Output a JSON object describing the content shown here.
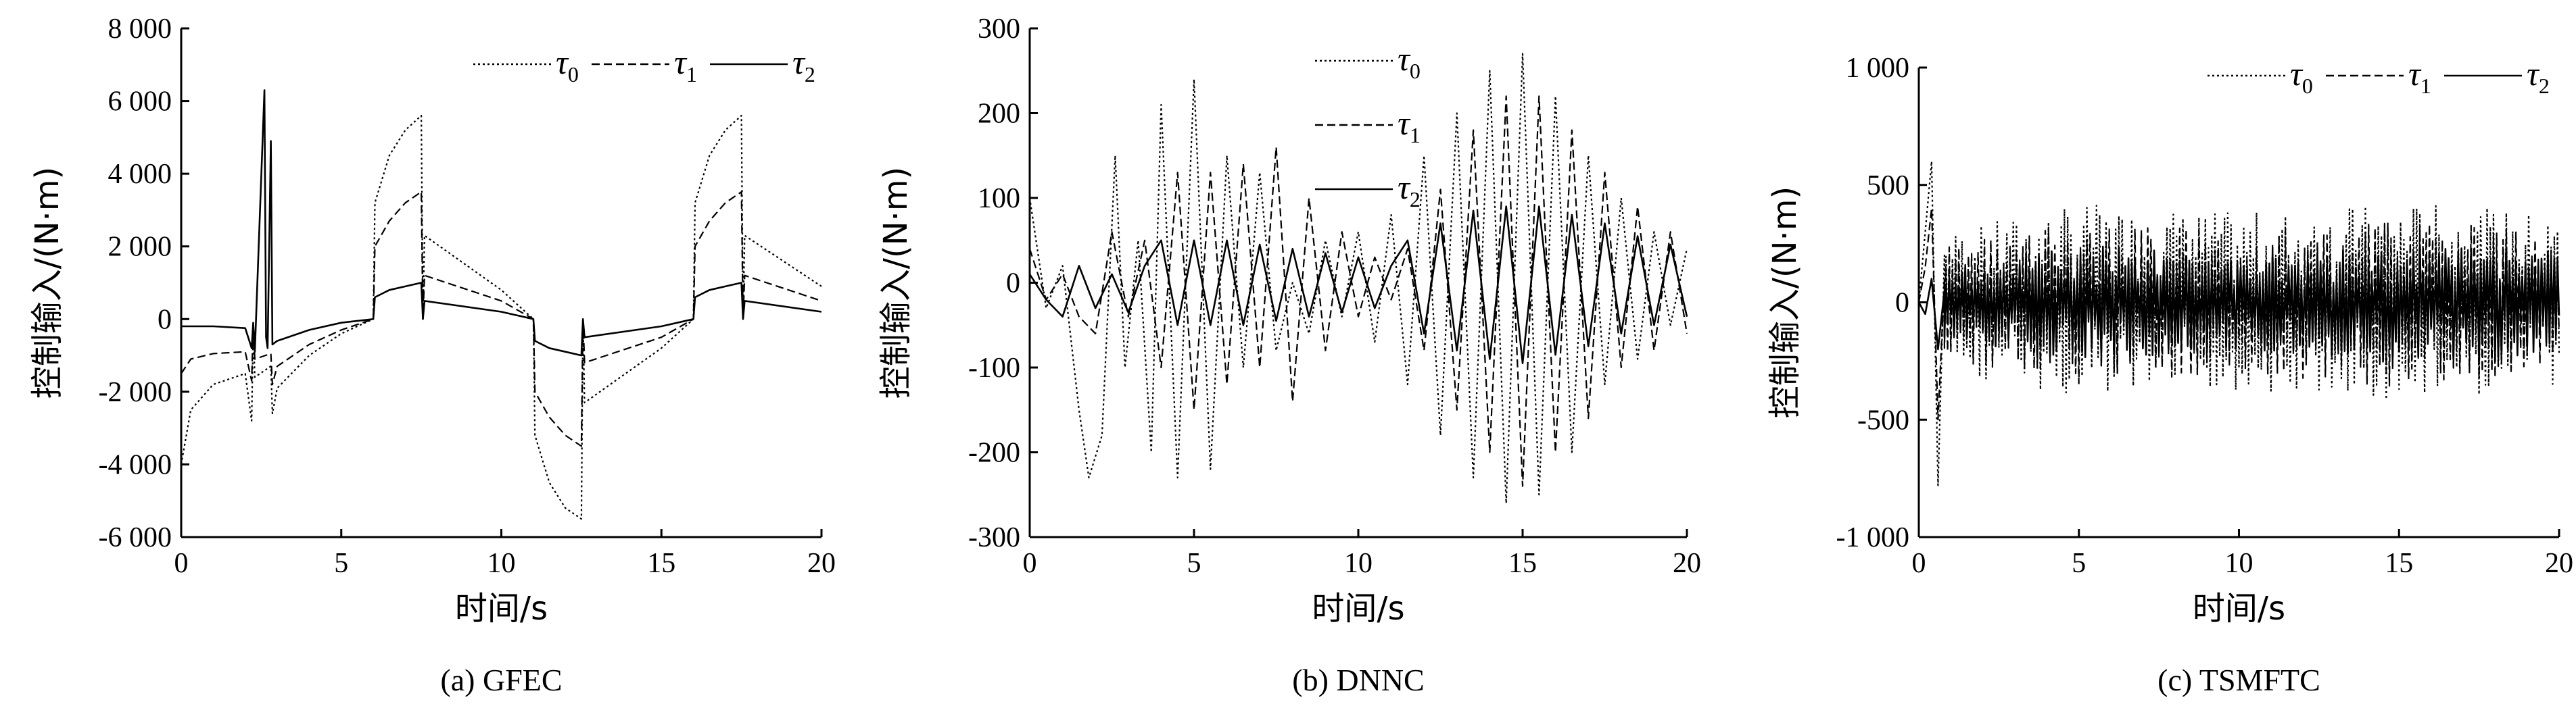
{
  "chart_data": [
    {
      "type": "line",
      "caption": "(a) GFEC",
      "xlabel": "时间/s",
      "ylabel": "控制输入/(N·m)",
      "xlim": [
        0,
        20
      ],
      "ylim": [
        -6000,
        8000
      ],
      "xticks": [
        0,
        5,
        10,
        15,
        20
      ],
      "xtick_labels": [
        "0",
        "5",
        "10",
        "15",
        "20"
      ],
      "yticks": [
        -6000,
        -4000,
        -2000,
        0,
        2000,
        4000,
        6000,
        8000
      ],
      "ytick_labels": [
        "-6 000",
        "-4 000",
        "-2 000",
        "0",
        "2 000",
        "4 000",
        "6 000",
        "8 000"
      ],
      "legend_layout": "row",
      "legend_position": "top-right",
      "series": [
        {
          "name": "τ",
          "sub": "0",
          "style": "dotted",
          "x": [
            0,
            0.3,
            1,
            2,
            2.2,
            2.25,
            2.3,
            2.8,
            2.85,
            3,
            4,
            5,
            6,
            6.05,
            6.5,
            7,
            7.5,
            7.55,
            7.6,
            10,
            11,
            11.05,
            11.5,
            12,
            12.5,
            12.55,
            12.6,
            15,
            16,
            16.05,
            16.5,
            17,
            17.5,
            17.55,
            17.6,
            20
          ],
          "y": [
            -4000,
            -2500,
            -1800,
            -1500,
            -2800,
            -300,
            -1600,
            -1300,
            -2600,
            -1900,
            -1000,
            -400,
            0,
            3200,
            4500,
            5200,
            5600,
            0,
            2300,
            800,
            0,
            -3200,
            -4500,
            -5200,
            -5500,
            0,
            -2300,
            -800,
            0,
            3200,
            4500,
            5200,
            5600,
            0,
            2300,
            900
          ]
        },
        {
          "name": "τ",
          "sub": "1",
          "style": "dashed",
          "x": [
            0,
            0.3,
            1,
            2,
            2.2,
            2.25,
            2.3,
            2.8,
            2.85,
            3,
            4,
            5,
            6,
            6.05,
            6.5,
            7,
            7.5,
            7.55,
            7.6,
            10,
            11,
            11.05,
            11.5,
            12,
            12.5,
            12.55,
            12.6,
            15,
            16,
            16.05,
            16.5,
            17,
            17.5,
            17.55,
            17.6,
            20
          ],
          "y": [
            -1500,
            -1100,
            -950,
            -900,
            -1700,
            -200,
            -1100,
            -950,
            -1800,
            -1300,
            -700,
            -300,
            0,
            2000,
            2700,
            3200,
            3500,
            0,
            1200,
            500,
            0,
            -2000,
            -2700,
            -3200,
            -3500,
            0,
            -1200,
            -500,
            0,
            2000,
            2700,
            3200,
            3500,
            0,
            1200,
            500
          ]
        },
        {
          "name": "τ",
          "sub": "2",
          "style": "solid",
          "x": [
            0,
            1,
            2,
            2.2,
            2.25,
            2.3,
            2.6,
            2.65,
            2.7,
            2.8,
            2.85,
            3,
            4,
            5,
            6,
            6.05,
            6.5,
            7,
            7.5,
            7.55,
            7.6,
            10,
            11,
            11.05,
            11.5,
            12,
            12.5,
            12.55,
            12.6,
            15,
            16,
            16.05,
            16.5,
            17,
            17.5,
            17.55,
            17.6,
            20
          ],
          "y": [
            -200,
            -200,
            -250,
            -800,
            -100,
            -900,
            6300,
            -500,
            -800,
            4900,
            -700,
            -600,
            -300,
            -100,
            0,
            600,
            800,
            900,
            1000,
            0,
            500,
            200,
            0,
            -600,
            -800,
            -900,
            -1000,
            0,
            -500,
            -200,
            0,
            600,
            800,
            900,
            1000,
            0,
            500,
            200
          ]
        }
      ]
    },
    {
      "type": "line",
      "caption": "(b) DNNC",
      "xlabel": "时间/s",
      "ylabel": "控制输入/(N·m)",
      "xlim": [
        0,
        20
      ],
      "ylim": [
        -300,
        300
      ],
      "xticks": [
        0,
        5,
        10,
        15,
        20
      ],
      "xtick_labels": [
        "0",
        "5",
        "10",
        "15",
        "20"
      ],
      "yticks": [
        -300,
        -200,
        -100,
        0,
        100,
        200,
        300
      ],
      "ytick_labels": [
        "-300",
        "-200",
        "-100",
        "0",
        "100",
        "200",
        "300"
      ],
      "legend_layout": "column",
      "legend_position": "top-center",
      "series": [
        {
          "name": "τ",
          "sub": "0",
          "style": "dotted",
          "x": [
            0,
            0.5,
            1,
            1.5,
            1.8,
            2.2,
            2.6,
            2.9,
            3.3,
            3.7,
            4,
            4.5,
            5,
            5.5,
            6,
            6.5,
            7,
            7.5,
            8,
            8.5,
            9,
            9.5,
            10,
            10.5,
            11,
            11.5,
            12,
            12.5,
            13,
            13.5,
            14,
            14.5,
            15,
            15.5,
            16,
            16.5,
            17,
            17.5,
            18,
            18.5,
            19,
            19.5,
            20
          ],
          "y": [
            100,
            -30,
            20,
            -150,
            -230,
            -180,
            150,
            -100,
            50,
            -200,
            210,
            -230,
            240,
            -220,
            150,
            -100,
            130,
            -80,
            0,
            -60,
            50,
            -40,
            60,
            -70,
            80,
            -120,
            150,
            -180,
            200,
            -230,
            250,
            -260,
            270,
            -250,
            220,
            -200,
            150,
            -120,
            100,
            -90,
            60,
            -50,
            40
          ]
        },
        {
          "name": "τ",
          "sub": "1",
          "style": "dashed",
          "x": [
            0,
            0.5,
            1,
            1.5,
            2,
            2.5,
            3,
            3.5,
            4,
            4.5,
            5,
            5.5,
            6,
            6.5,
            7,
            7.5,
            8,
            8.5,
            9,
            9.5,
            10,
            10.5,
            11,
            11.5,
            12,
            12.5,
            13,
            13.5,
            14,
            14.5,
            15,
            15.5,
            16,
            16.5,
            17,
            17.5,
            18,
            18.5,
            19,
            19.5,
            20
          ],
          "y": [
            40,
            -20,
            10,
            -40,
            -60,
            60,
            -40,
            50,
            -100,
            130,
            -150,
            130,
            -120,
            140,
            -100,
            160,
            -140,
            100,
            -80,
            60,
            -40,
            30,
            -20,
            40,
            -80,
            110,
            -150,
            180,
            -200,
            220,
            -240,
            220,
            -200,
            180,
            -160,
            130,
            -100,
            90,
            -80,
            60,
            -60
          ]
        },
        {
          "name": "τ",
          "sub": "2",
          "style": "solid",
          "x": [
            0,
            0.5,
            1,
            1.5,
            2,
            2.5,
            3,
            3.5,
            4,
            4.5,
            5,
            5.5,
            6,
            6.5,
            7,
            7.5,
            8,
            8.5,
            9,
            9.5,
            10,
            10.5,
            11,
            11.5,
            12,
            12.5,
            13,
            13.5,
            14,
            14.5,
            15,
            15.5,
            16,
            16.5,
            17,
            17.5,
            18,
            18.5,
            19,
            19.5,
            20
          ],
          "y": [
            10,
            -20,
            -40,
            20,
            -30,
            10,
            -35,
            20,
            50,
            -50,
            50,
            -50,
            50,
            -50,
            45,
            -45,
            40,
            -40,
            35,
            -35,
            30,
            -30,
            20,
            50,
            -60,
            70,
            -80,
            85,
            -90,
            90,
            -95,
            90,
            -85,
            80,
            -75,
            70,
            -60,
            55,
            -50,
            45,
            -40
          ]
        }
      ]
    },
    {
      "type": "line",
      "caption": "(c) TSMFTC",
      "xlabel": "时间/s",
      "ylabel": "控制输入/(N·m)",
      "xlim": [
        0,
        20
      ],
      "ylim": [
        -1000,
        1000
      ],
      "xticks": [
        0,
        5,
        10,
        15,
        20
      ],
      "xtick_labels": [
        "0",
        "5",
        "10",
        "15",
        "20"
      ],
      "yticks": [
        -1000,
        -500,
        0,
        500,
        1000
      ],
      "ytick_labels": [
        "-1 000",
        "-500",
        "0",
        "500",
        "1 000"
      ],
      "legend_layout": "row",
      "legend_position": "top-right",
      "noise": {
        "start": 0.8,
        "end": 20,
        "step": 0.05,
        "seed": 7
      },
      "series": [
        {
          "name": "τ",
          "sub": "0",
          "style": "dotted",
          "x": [
            0,
            0.2,
            0.4,
            0.6,
            0.8
          ],
          "y": [
            0,
            300,
            600,
            -780,
            200
          ],
          "noise_amp": [
            [
              0.8,
              300
            ],
            [
              5,
              420
            ],
            [
              10,
              380
            ],
            [
              15,
              430
            ],
            [
              20,
              380
            ]
          ]
        },
        {
          "name": "τ",
          "sub": "1",
          "style": "dashed",
          "x": [
            0,
            0.2,
            0.4,
            0.6,
            0.8
          ],
          "y": [
            0,
            150,
            400,
            -500,
            100
          ],
          "noise_amp": [
            [
              0.8,
              250
            ],
            [
              5,
              350
            ],
            [
              10,
              300
            ],
            [
              15,
              360
            ],
            [
              20,
              300
            ]
          ]
        },
        {
          "name": "τ",
          "sub": "2",
          "style": "solid",
          "x": [
            0,
            0.2,
            0.4,
            0.6,
            0.8
          ],
          "y": [
            0,
            -50,
            100,
            -200,
            50
          ],
          "noise_amp": [
            [
              0.8,
              150
            ],
            [
              5,
              250
            ],
            [
              10,
              200
            ],
            [
              15,
              260
            ],
            [
              20,
              220
            ]
          ]
        }
      ]
    }
  ]
}
